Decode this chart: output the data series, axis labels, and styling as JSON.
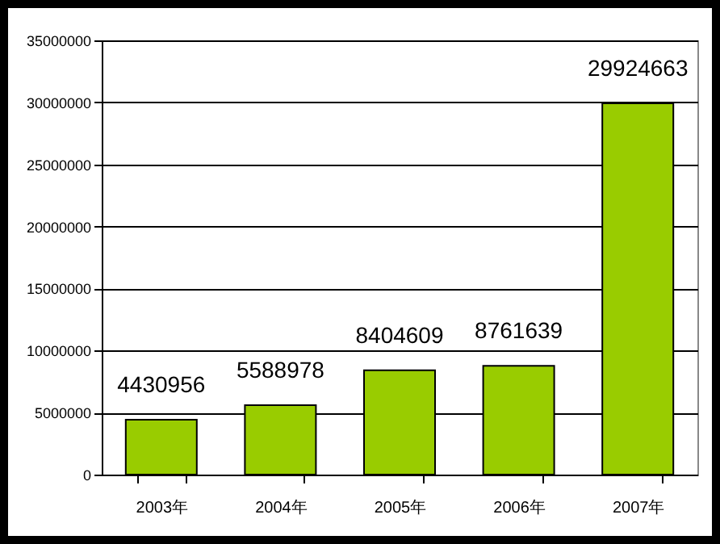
{
  "chart_data": {
    "type": "bar",
    "categories": [
      "2003年",
      "2004年",
      "2005年",
      "2006年",
      "2007年"
    ],
    "values": [
      4430956,
      5588978,
      8404609,
      8761639,
      29924663
    ],
    "color": "#99cc00",
    "ylim": [
      0,
      35000000
    ],
    "yticks": [
      0,
      5000000,
      10000000,
      15000000,
      20000000,
      25000000,
      30000000,
      35000000
    ],
    "grid": "y",
    "data_labels": true
  }
}
